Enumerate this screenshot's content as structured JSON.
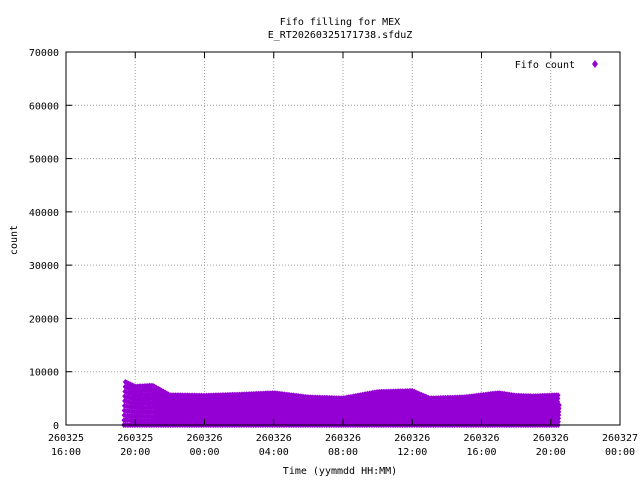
{
  "chart_data": {
    "type": "scatter",
    "title": "Fifo filling for MEX",
    "subtitle": "E_RT20260325171738.sfduZ",
    "xlabel": "Time (yymmdd HH:MM)",
    "ylabel": "count",
    "ylim": [
      0,
      70000
    ],
    "yticks": [
      0,
      10000,
      20000,
      30000,
      40000,
      50000,
      60000,
      70000
    ],
    "xlim": [
      "2026-03-25 16:00",
      "2026-03-27 00:00"
    ],
    "xticks": [
      {
        "value": "2026-03-25 16:00",
        "line1": "260325",
        "line2": "16:00"
      },
      {
        "value": "2026-03-25 20:00",
        "line1": "260325",
        "line2": "20:00"
      },
      {
        "value": "2026-03-26 00:00",
        "line1": "260326",
        "line2": "00:00"
      },
      {
        "value": "2026-03-26 04:00",
        "line1": "260326",
        "line2": "04:00"
      },
      {
        "value": "2026-03-26 08:00",
        "line1": "260326",
        "line2": "08:00"
      },
      {
        "value": "2026-03-26 12:00",
        "line1": "260326",
        "line2": "12:00"
      },
      {
        "value": "2026-03-26 16:00",
        "line1": "260326",
        "line2": "16:00"
      },
      {
        "value": "2026-03-26 20:00",
        "line1": "260326",
        "line2": "20:00"
      },
      {
        "value": "2026-03-27 00:00",
        "line1": "260327",
        "line2": "00:00"
      }
    ],
    "grid": true,
    "legend_position": "top-right",
    "series": [
      {
        "name": "Fifo count",
        "color": "#9400d3",
        "marker": "diamond",
        "x_range": [
          "2026-03-25 19:20",
          "2026-03-26 20:30"
        ],
        "sawtooth_peaks": [
          [
            "2026-03-25 19:20",
            8200
          ],
          [
            "2026-03-25 20:00",
            7200
          ],
          [
            "2026-03-25 21:00",
            7400
          ],
          [
            "2026-03-25 22:00",
            5600
          ],
          [
            "2026-03-26 00:00",
            5500
          ],
          [
            "2026-03-26 02:00",
            5700
          ],
          [
            "2026-03-26 04:00",
            6000
          ],
          [
            "2026-03-26 05:00",
            5600
          ],
          [
            "2026-03-26 06:00",
            5200
          ],
          [
            "2026-03-26 08:00",
            5000
          ],
          [
            "2026-03-26 10:00",
            6200
          ],
          [
            "2026-03-26 12:00",
            6400
          ],
          [
            "2026-03-26 13:00",
            5000
          ],
          [
            "2026-03-26 15:00",
            5200
          ],
          [
            "2026-03-26 17:00",
            6000
          ],
          [
            "2026-03-26 18:00",
            5500
          ],
          [
            "2026-03-26 19:00",
            5400
          ],
          [
            "2026-03-26 20:30",
            5600
          ]
        ]
      }
    ]
  }
}
